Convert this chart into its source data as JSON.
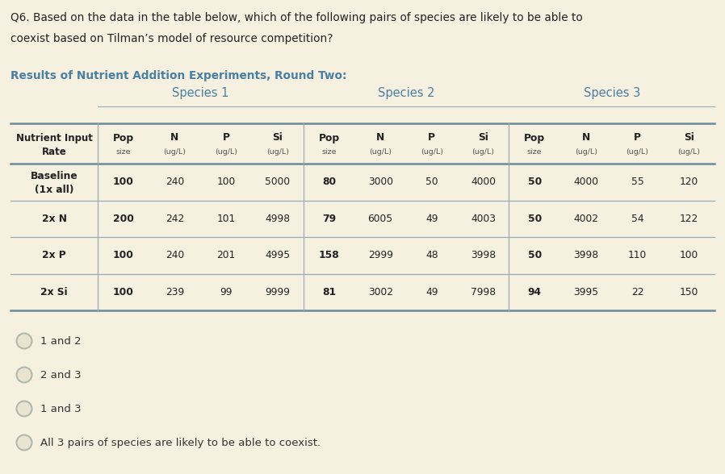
{
  "question_text_line1": "Q6. Based on the data in the table below, which of the following pairs of species are likely to be able to",
  "question_text_line2": "coexist based on Tilman’s model of resource competition?",
  "table_title": "Results of Nutrient Addition Experiments, Round Two:",
  "species_headers": [
    "Species 1",
    "Species 2",
    "Species 3"
  ],
  "col_sub_headers": [
    "Pop\nsize",
    "N\n(ug/L)",
    "P\n(ug/L)",
    "Si\n(ug/L)",
    "Pop\nsize",
    "N\n(ug/L)",
    "P\n(ug/L)",
    "Si\n(ug/L)",
    "Pop\nsize",
    "N\n(ug/L)",
    "P\n(ug/L)",
    "Si\n(ug/L)"
  ],
  "row_labels": [
    "Baseline\n(1x all)",
    "2x N",
    "2x P",
    "2x Si"
  ],
  "table_data": [
    [
      100,
      240,
      100,
      5000,
      80,
      3000,
      50,
      4000,
      50,
      4000,
      55,
      120
    ],
    [
      200,
      242,
      101,
      4998,
      79,
      6005,
      49,
      4003,
      50,
      4002,
      54,
      122
    ],
    [
      100,
      240,
      201,
      4995,
      158,
      2999,
      48,
      3998,
      50,
      3998,
      110,
      100
    ],
    [
      100,
      239,
      99,
      9999,
      81,
      3002,
      49,
      7998,
      94,
      3995,
      22,
      150
    ]
  ],
  "answer_options": [
    "1 and 2",
    "2 and 3",
    "1 and 3",
    "All 3 pairs of species are likely to be able to coexist."
  ],
  "bg_color": "#f5f0e0",
  "table_header_color": "#4a7fa0",
  "line_color_thick": "#6a8a9a",
  "line_color_thin": "#9aacb4",
  "question_text_color": "#222222",
  "table_title_color": "#4a7fa0",
  "circle_edge_color": "#b0b8b0",
  "circle_face_color": "#e8e4d0",
  "text_color_bold": "#222222",
  "text_color_normal": "#333333",
  "text_color_sub": "#555555"
}
